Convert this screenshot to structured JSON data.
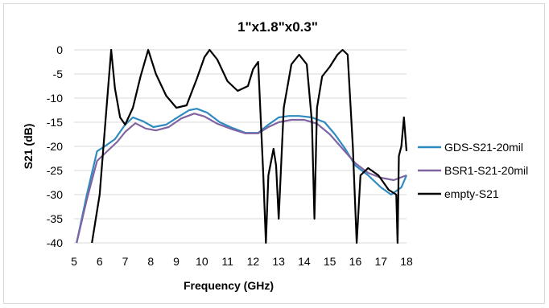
{
  "chart_data": {
    "type": "line",
    "title": "1\"x1.8\"x0.3\"",
    "xlabel": "Frequency (GHz)",
    "ylabel": "S21 (dB)",
    "xlim": [
      5,
      18
    ],
    "ylim": [
      -40,
      0
    ],
    "xticks": [
      5,
      6,
      7,
      8,
      9,
      10,
      11,
      12,
      13,
      14,
      15,
      16,
      17,
      18
    ],
    "yticks": [
      0,
      -5,
      -10,
      -15,
      -20,
      -25,
      -30,
      -35,
      -40
    ],
    "grid": "horizontal",
    "legend": "right",
    "series": [
      {
        "name": "GDS-S21-20mil",
        "color": "#2e8bc0",
        "x": [
          5.1,
          5.5,
          5.9,
          6.2,
          6.6,
          7.0,
          7.3,
          7.7,
          8.1,
          8.6,
          9.1,
          9.5,
          9.8,
          10.2,
          10.7,
          11.2,
          11.7,
          12.2,
          12.6,
          13.0,
          13.4,
          13.8,
          14.3,
          14.8,
          15.2,
          15.6,
          16.0,
          16.5,
          17.0,
          17.4,
          17.8,
          18.0
        ],
        "y": [
          -40,
          -30,
          -21,
          -20,
          -18.5,
          -15.5,
          -14,
          -14.8,
          -16,
          -15.5,
          -13.8,
          -12.5,
          -12.2,
          -13,
          -15,
          -16.2,
          -17.2,
          -17.2,
          -15.5,
          -14,
          -13.7,
          -13.7,
          -14,
          -15,
          -17.5,
          -20.5,
          -24,
          -26,
          -28.5,
          -30,
          -28.5,
          -26
        ]
      },
      {
        "name": "BSR1-S21-20mil",
        "color": "#8064a2",
        "x": [
          5.1,
          5.5,
          5.9,
          6.3,
          6.7,
          7.0,
          7.4,
          7.8,
          8.2,
          8.7,
          9.2,
          9.7,
          10.1,
          10.6,
          11.2,
          11.7,
          12.2,
          12.6,
          13.0,
          13.5,
          14.0,
          14.5,
          15.0,
          15.5,
          16.0,
          16.5,
          17.0,
          17.5,
          18.0
        ],
        "y": [
          -40,
          -31,
          -23,
          -21,
          -19,
          -17,
          -15.2,
          -16.3,
          -16.7,
          -16,
          -14.2,
          -13.2,
          -13.8,
          -15.3,
          -16.5,
          -17.3,
          -17.3,
          -16,
          -15,
          -14.5,
          -14.5,
          -15.3,
          -17.5,
          -20.5,
          -23.5,
          -25.5,
          -26.5,
          -27,
          -26
        ]
      },
      {
        "name": "empty-S21",
        "color": "#000000",
        "x": [
          5.7,
          6.0,
          6.3,
          6.45,
          6.6,
          6.8,
          7.0,
          7.3,
          7.6,
          7.9,
          8.2,
          8.6,
          9.0,
          9.4,
          9.8,
          10.1,
          10.3,
          10.6,
          11.0,
          11.4,
          11.8,
          12.0,
          12.2,
          12.4,
          12.5,
          12.6,
          12.8,
          12.9,
          13.0,
          13.2,
          13.5,
          13.8,
          14.1,
          14.3,
          14.4,
          14.5,
          14.7,
          15.0,
          15.3,
          15.5,
          15.7,
          15.9,
          16.05,
          16.2,
          16.5,
          16.9,
          17.3,
          17.6,
          17.65,
          17.7,
          17.8,
          17.9,
          18.0
        ],
        "y": [
          -40,
          -30,
          -10,
          0,
          -8,
          -14,
          -15.5,
          -12,
          -5.5,
          0,
          -5,
          -9.5,
          -12,
          -11.5,
          -6,
          -1.5,
          0,
          -2,
          -6.5,
          -8.5,
          -7.5,
          -4,
          -2.5,
          -26,
          -40,
          -26,
          -20.5,
          -24,
          -35,
          -12,
          -3,
          -1,
          -3,
          -15,
          -35,
          -12,
          -5.5,
          -3.5,
          -1,
          0,
          -1,
          -20,
          -40,
          -26,
          -24.5,
          -26,
          -29,
          -30,
          -40,
          -22,
          -20,
          -14,
          -21
        ]
      }
    ]
  }
}
